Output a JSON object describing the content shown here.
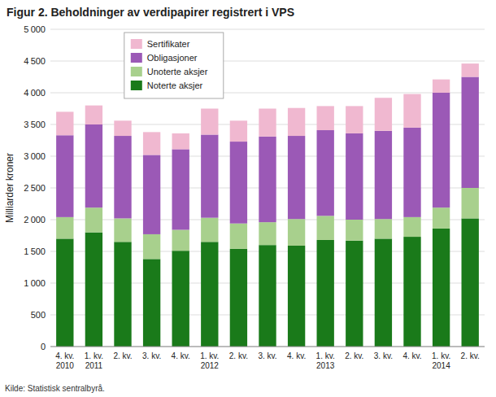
{
  "chart_data": {
    "type": "bar",
    "stacked": true,
    "title": "Figur 2. Beholdninger av verdipapirer registrert i VPS",
    "ylabel": "Milliarder kroner",
    "source": "Kilde: Statistisk sentralbyrå.",
    "categories": [
      "4. kv.\n2010",
      "1. kv.\n2011",
      "2. kv.",
      "3. kv.",
      "4. kv.",
      "1. kv.\n2012",
      "2. kv.",
      "3. kv.",
      "4. kv.",
      "1. kv.\n2013",
      "2. kv.",
      "3. kv.",
      "4. kv.",
      "1. kv.\n2014",
      "2. kv."
    ],
    "series": [
      {
        "name": "Noterte aksjer",
        "color": "#1a7a1a",
        "values": [
          1700,
          1800,
          1650,
          1380,
          1510,
          1650,
          1540,
          1600,
          1590,
          1680,
          1670,
          1700,
          1730,
          1860,
          2020
        ]
      },
      {
        "name": "Unoterte aksjer",
        "color": "#a8d08d",
        "values": [
          340,
          390,
          370,
          390,
          330,
          380,
          400,
          360,
          420,
          380,
          330,
          310,
          310,
          330,
          480
        ]
      },
      {
        "name": "Obligasjoner",
        "color": "#9b59b6",
        "values": [
          1290,
          1310,
          1300,
          1250,
          1270,
          1310,
          1290,
          1350,
          1310,
          1350,
          1360,
          1390,
          1410,
          1810,
          1750
        ]
      },
      {
        "name": "Sertifikater",
        "color": "#f0b8d0",
        "values": [
          370,
          300,
          240,
          360,
          250,
          410,
          330,
          440,
          440,
          380,
          430,
          520,
          530,
          210,
          210
        ]
      }
    ],
    "ylim": [
      0,
      5000
    ],
    "yticks": [
      0,
      500,
      {
        "value": 1000,
        "label": "1 000"
      },
      {
        "value": 1500,
        "label": "1 500"
      },
      {
        "value": 2000,
        "label": "2 000"
      },
      {
        "value": 2500,
        "label": "2 500"
      },
      {
        "value": 3000,
        "label": "3 000"
      },
      {
        "value": 3500,
        "label": "3 500"
      },
      {
        "value": 4000,
        "label": "4 000"
      },
      {
        "value": 4500,
        "label": "4 500"
      },
      {
        "value": 5000,
        "label": "5 000"
      }
    ],
    "grid": true,
    "legend": "upper left"
  }
}
